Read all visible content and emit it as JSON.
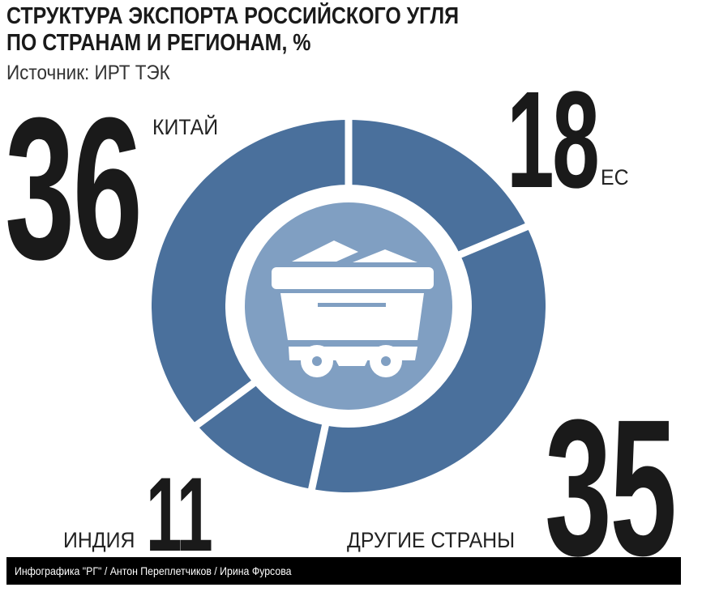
{
  "chart_data": {
    "type": "pie",
    "variant": "donut",
    "title": "СТРУКТУРА ЭКСПОРТА РОССИЙСКОГО УГЛЯ ПО СТРАНАМ И РЕГИОНАМ, %",
    "subtitle": "Источник: ИРТ ТЭК",
    "slices": [
      {
        "label": "ЕС",
        "value": 18
      },
      {
        "label": "ДРУГИЕ СТРАНЫ",
        "value": 35
      },
      {
        "label": "ИНДИЯ",
        "value": 11
      },
      {
        "label": "КИТАЙ",
        "value": 36
      }
    ],
    "colors": {
      "slice": "#4a709c",
      "center": "#809fc2",
      "icon": "#ffffff"
    },
    "center_icon": "mine-cart-with-coal-icon"
  },
  "title_line1": "СТРУКТУРА ЭКСПОРТА РОССИЙСКОГО УГЛЯ",
  "title_line2": "ПО СТРАНАМ И РЕГИОНАМ, %",
  "footer": "Инфографика \"РГ\" / Антон Переплетчиков / Ирина Фурсова"
}
